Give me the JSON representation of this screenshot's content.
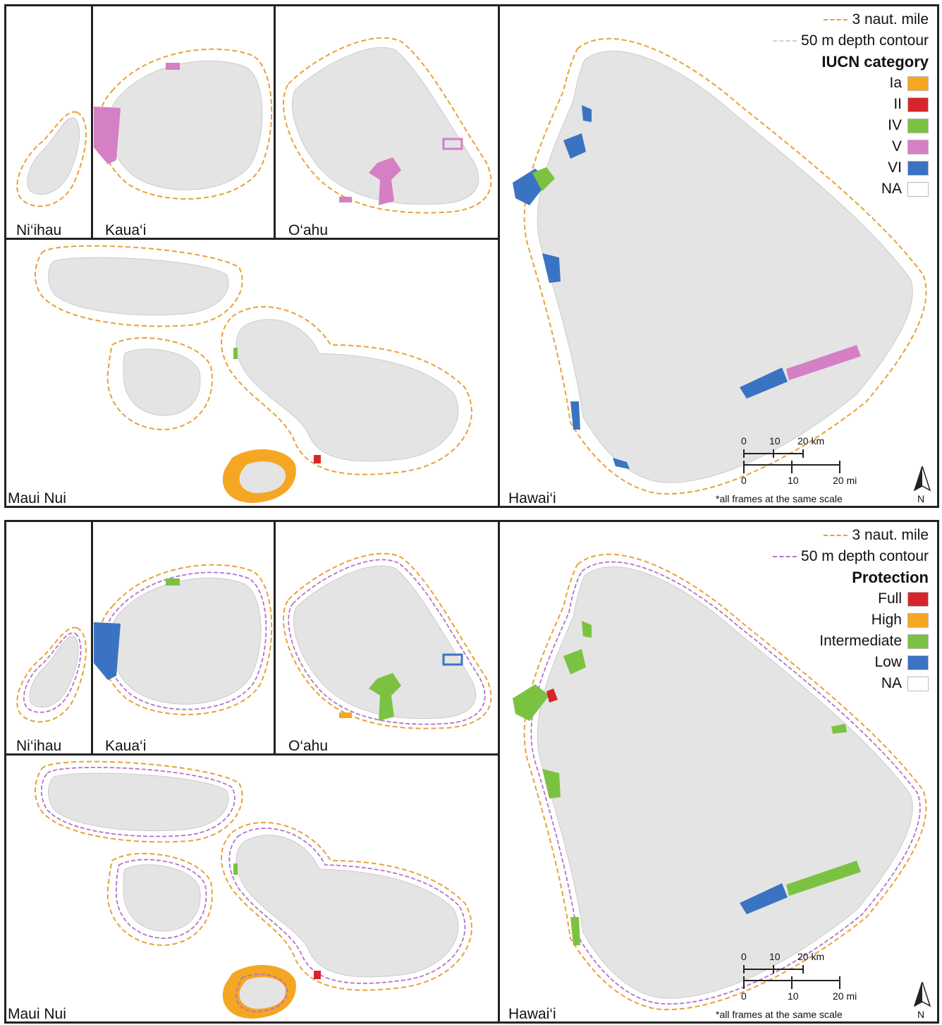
{
  "panels": [
    {
      "frames": {
        "niihau": "Ni‘ihau",
        "kauai": "Kaua‘i",
        "oahu": "O‘ahu",
        "maui_nui": "Maui Nui",
        "hawaii": "Hawai‘i"
      },
      "legend": {
        "line_3nm": "3 naut. mile",
        "line_50m": "50 m depth contour",
        "title": "IUCN category",
        "items": [
          {
            "label": "Ia",
            "color": "#f5a623"
          },
          {
            "label": "II",
            "color": "#d7262b"
          },
          {
            "label": "IV",
            "color": "#7cc242"
          },
          {
            "label": "V",
            "color": "#d57fc4"
          },
          {
            "label": "VI",
            "color": "#3a73c2"
          },
          {
            "label": "NA",
            "color": "#ffffff"
          }
        ]
      },
      "scale": {
        "km_ticks": [
          "0",
          "10",
          "20 km"
        ],
        "mi_ticks": [
          "0",
          "10",
          "20 mi"
        ],
        "note": "*all frames at the same scale"
      },
      "north_label": "N"
    },
    {
      "frames": {
        "niihau": "Ni‘ihau",
        "kauai": "Kaua‘i",
        "oahu": "O‘ahu",
        "maui_nui": "Maui Nui",
        "hawaii": "Hawai‘i"
      },
      "legend": {
        "line_3nm": "3 naut. mile",
        "line_50m": "50 m depth contour",
        "title": "Protection",
        "items": [
          {
            "label": "Full",
            "color": "#d7262b"
          },
          {
            "label": "High",
            "color": "#f5a623"
          },
          {
            "label": "Intermediate",
            "color": "#7cc242"
          },
          {
            "label": "Low",
            "color": "#3a73c2"
          },
          {
            "label": "NA",
            "color": "#ffffff"
          }
        ]
      },
      "scale": {
        "km_ticks": [
          "0",
          "10",
          "20 km"
        ],
        "mi_ticks": [
          "0",
          "10",
          "20 mi"
        ],
        "note": "*all frames at the same scale"
      },
      "north_label": "N"
    }
  ],
  "colors": {
    "boundary_3nm": "#e8a13a",
    "contour_50m_top": "#d8c6e0",
    "contour_50m_bottom": "#b572c8",
    "island_fill": "#e4e4e4"
  }
}
